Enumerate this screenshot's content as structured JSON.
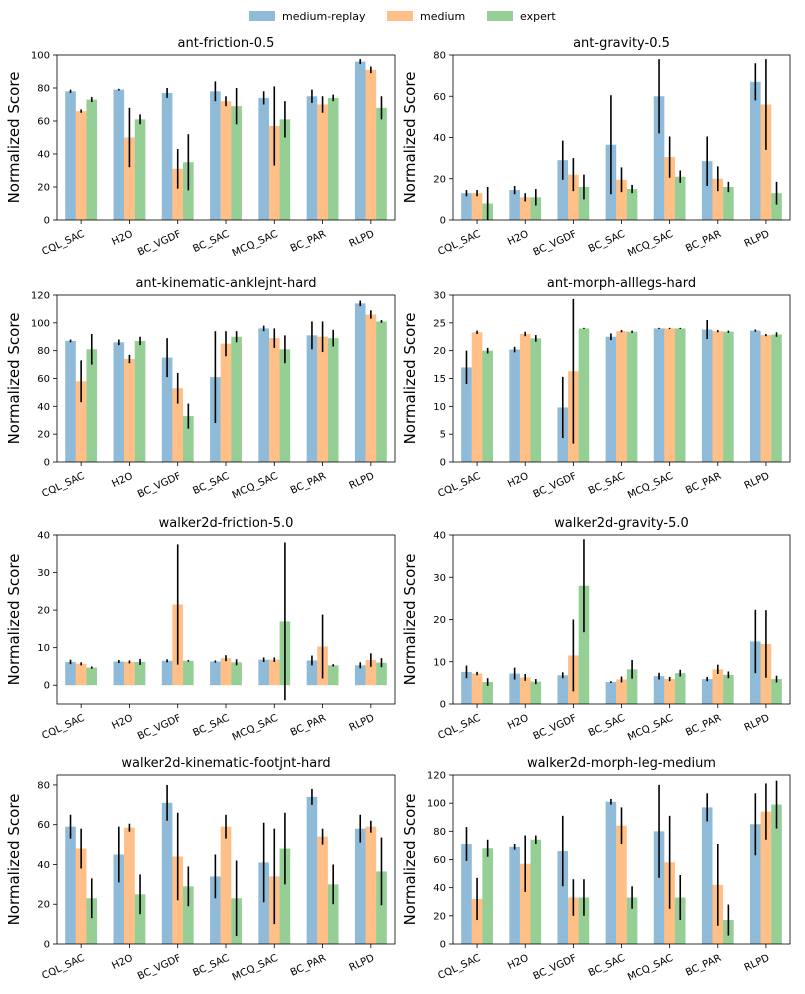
{
  "legend": [
    {
      "name": "medium-replay",
      "color": "#1f77b4"
    },
    {
      "name": "medium",
      "color": "#ff7f0e"
    },
    {
      "name": "expert",
      "color": "#2ca02c"
    }
  ],
  "chart_data": [
    {
      "type": "bar",
      "title": "ant-friction-0.5",
      "ylabel": "Normalized Score",
      "categories": [
        "CQL_SAC",
        "H2O",
        "BC_VGDF",
        "BC_SAC",
        "MCQ_SAC",
        "BC_PAR",
        "RLPD"
      ],
      "ylim": [
        0,
        100
      ],
      "yticks": [
        0,
        20,
        40,
        60,
        80,
        100
      ],
      "series": [
        {
          "name": "medium-replay",
          "values": [
            78,
            79,
            77,
            78,
            74,
            75,
            96
          ],
          "errors": [
            1,
            0.5,
            3,
            6,
            4,
            4,
            1.5
          ]
        },
        {
          "name": "medium",
          "values": [
            66,
            50,
            31,
            72,
            57,
            70,
            91
          ],
          "errors": [
            1,
            18,
            12,
            3,
            24,
            5,
            2
          ]
        },
        {
          "name": "expert",
          "values": [
            73,
            61,
            35,
            69,
            61,
            74,
            68
          ],
          "errors": [
            1.5,
            3,
            17,
            11,
            11,
            2,
            7
          ]
        }
      ]
    },
    {
      "type": "bar",
      "title": "ant-gravity-0.5",
      "ylabel": "Normalized Score",
      "categories": [
        "CQL_SAC",
        "H2O",
        "BC_VGDF",
        "BC_SAC",
        "MCQ_SAC",
        "BC_PAR",
        "RLPD"
      ],
      "ylim": [
        0,
        80
      ],
      "yticks": [
        0,
        20,
        40,
        60,
        80
      ],
      "series": [
        {
          "name": "medium-replay",
          "values": [
            13,
            14.5,
            29,
            36.5,
            60,
            28.5,
            67
          ],
          "errors": [
            1.5,
            2,
            9.5,
            24,
            18,
            12,
            9
          ]
        },
        {
          "name": "medium",
          "values": [
            13,
            11,
            22,
            19.5,
            30.5,
            20,
            56
          ],
          "errors": [
            1.5,
            2,
            8,
            6,
            10,
            6,
            22
          ]
        },
        {
          "name": "expert",
          "values": [
            8,
            11,
            16,
            15,
            21,
            16,
            13
          ],
          "errors": [
            8,
            4,
            6,
            2,
            3,
            2.5,
            5.5
          ]
        }
      ]
    },
    {
      "type": "bar",
      "title": "ant-kinematic-anklejnt-hard",
      "ylabel": "Normalized Score",
      "categories": [
        "CQL_SAC",
        "H2O",
        "BC_VGDF",
        "BC_SAC",
        "MCQ_SAC",
        "BC_PAR",
        "RLPD"
      ],
      "ylim": [
        0,
        120
      ],
      "yticks": [
        0,
        20,
        40,
        60,
        80,
        100,
        120
      ],
      "series": [
        {
          "name": "medium-replay",
          "values": [
            87,
            86,
            75,
            61,
            96,
            91,
            114
          ],
          "errors": [
            1,
            2,
            14,
            33,
            2,
            10,
            2
          ]
        },
        {
          "name": "medium",
          "values": [
            58,
            74,
            53,
            85,
            89,
            90,
            106
          ],
          "errors": [
            15,
            3,
            11,
            9,
            7,
            11,
            3
          ]
        },
        {
          "name": "expert",
          "values": [
            81,
            87,
            33,
            90,
            81,
            89,
            101
          ],
          "errors": [
            11,
            3,
            9,
            4,
            10,
            6,
            1
          ]
        }
      ]
    },
    {
      "type": "bar",
      "title": "ant-morph-alllegs-hard",
      "ylabel": "Normalized Score",
      "categories": [
        "CQL_SAC",
        "H2O",
        "BC_VGDF",
        "BC_SAC",
        "MCQ_SAC",
        "BC_PAR",
        "RLPD"
      ],
      "ylim": [
        0,
        30
      ],
      "yticks": [
        0,
        5,
        10,
        15,
        20,
        25,
        30
      ],
      "series": [
        {
          "name": "medium-replay",
          "values": [
            17,
            20.2,
            9.8,
            22.5,
            24,
            23.8,
            23.6
          ],
          "errors": [
            3,
            0.5,
            5.5,
            0.6,
            0.1,
            1.7,
            0.2
          ]
        },
        {
          "name": "medium",
          "values": [
            23.3,
            23,
            16.3,
            23.5,
            24,
            23.5,
            22.8
          ],
          "errors": [
            0.3,
            0.4,
            13,
            0.2,
            0.1,
            0.2,
            0.2
          ]
        },
        {
          "name": "expert",
          "values": [
            20,
            22.2,
            24,
            23.4,
            24,
            23.4,
            22.9
          ],
          "errors": [
            0.5,
            0.6,
            0.1,
            0.2,
            0.1,
            0.2,
            0.4
          ]
        }
      ]
    },
    {
      "type": "bar",
      "title": "walker2d-friction-5.0",
      "ylabel": "Normalized Score",
      "categories": [
        "CQL_SAC",
        "H2O",
        "BC_VGDF",
        "BC_SAC",
        "MCQ_SAC",
        "BC_PAR",
        "RLPD"
      ],
      "ylim": [
        -5,
        40
      ],
      "yticks": [
        0,
        10,
        20,
        30,
        40
      ],
      "series": [
        {
          "name": "medium-replay",
          "values": [
            6.2,
            6.3,
            6.5,
            6.3,
            6.8,
            6.6,
            5.3
          ],
          "errors": [
            0.6,
            0.4,
            0.4,
            0.3,
            0.6,
            1.3,
            0.8
          ]
        },
        {
          "name": "medium",
          "values": [
            5.7,
            6.2,
            21.5,
            7.2,
            6.8,
            10.3,
            6.7
          ],
          "errors": [
            0.4,
            0.4,
            16,
            0.8,
            0.6,
            8.5,
            1.8
          ]
        },
        {
          "name": "expert",
          "values": [
            4.7,
            6.2,
            6.5,
            6.1,
            17,
            5.3,
            6
          ],
          "errors": [
            0.3,
            0.8,
            0.2,
            0.8,
            21,
            0.3,
            1.2
          ]
        }
      ]
    },
    {
      "type": "bar",
      "title": "walker2d-gravity-5.0",
      "ylabel": "Normalized Score",
      "categories": [
        "CQL_SAC",
        "H2O",
        "BC_VGDF",
        "BC_SAC",
        "MCQ_SAC",
        "BC_PAR",
        "RLPD"
      ],
      "ylim": [
        0,
        40
      ],
      "yticks": [
        0,
        10,
        20,
        30,
        40
      ],
      "series": [
        {
          "name": "medium-replay",
          "values": [
            7.6,
            7.2,
            6.8,
            5.2,
            6.6,
            5.9,
            14.8
          ],
          "errors": [
            1.5,
            1.4,
            0.7,
            0.2,
            0.8,
            0.5,
            7.5
          ]
        },
        {
          "name": "medium",
          "values": [
            7.2,
            6.3,
            11.5,
            5.8,
            5.9,
            8.2,
            14.2
          ],
          "errors": [
            0.4,
            0.8,
            8.5,
            0.7,
            0.5,
            1.1,
            8
          ]
        },
        {
          "name": "expert",
          "values": [
            5.2,
            5.3,
            28,
            8.2,
            7.3,
            6.9,
            5.9
          ],
          "errors": [
            0.9,
            0.6,
            11,
            2.2,
            0.8,
            0.8,
            0.8
          ]
        }
      ]
    },
    {
      "type": "bar",
      "title": "walker2d-kinematic-footjnt-hard",
      "ylabel": "Normalized Score",
      "categories": [
        "CQL_SAC",
        "H2O",
        "BC_VGDF",
        "BC_SAC",
        "MCQ_SAC",
        "BC_PAR",
        "RLPD"
      ],
      "ylim": [
        0,
        85
      ],
      "yticks": [
        0,
        20,
        40,
        60,
        80
      ],
      "series": [
        {
          "name": "medium-replay",
          "values": [
            59,
            45,
            71,
            34,
            41,
            74,
            58
          ],
          "errors": [
            6,
            14,
            9,
            11,
            20,
            4,
            7
          ]
        },
        {
          "name": "medium",
          "values": [
            48,
            58.5,
            44,
            59,
            34,
            54,
            59
          ],
          "errors": [
            10,
            2,
            22,
            6,
            24,
            4,
            3
          ]
        },
        {
          "name": "expert",
          "values": [
            23,
            25,
            29,
            23,
            48,
            30,
            36.5
          ],
          "errors": [
            10,
            10,
            10,
            19,
            18,
            10,
            17
          ]
        }
      ]
    },
    {
      "type": "bar",
      "title": "walker2d-morph-leg-medium",
      "ylabel": "Normalized Score",
      "categories": [
        "CQL_SAC",
        "H2O",
        "BC_VGDF",
        "BC_SAC",
        "MCQ_SAC",
        "BC_PAR",
        "RLPD"
      ],
      "ylim": [
        0,
        120
      ],
      "yticks": [
        0,
        20,
        40,
        60,
        80,
        100,
        120
      ],
      "series": [
        {
          "name": "medium-replay",
          "values": [
            71,
            69,
            66,
            101,
            80,
            97,
            85
          ],
          "errors": [
            12,
            2,
            25,
            2,
            33,
            10,
            22
          ]
        },
        {
          "name": "medium",
          "values": [
            32,
            57,
            33,
            84,
            58,
            42,
            94
          ],
          "errors": [
            15,
            20,
            13,
            13,
            33,
            29,
            20
          ]
        },
        {
          "name": "expert",
          "values": [
            68,
            74,
            33,
            33,
            33,
            17,
            99
          ],
          "errors": [
            6,
            3,
            13,
            8,
            16,
            11,
            17
          ]
        }
      ]
    }
  ]
}
